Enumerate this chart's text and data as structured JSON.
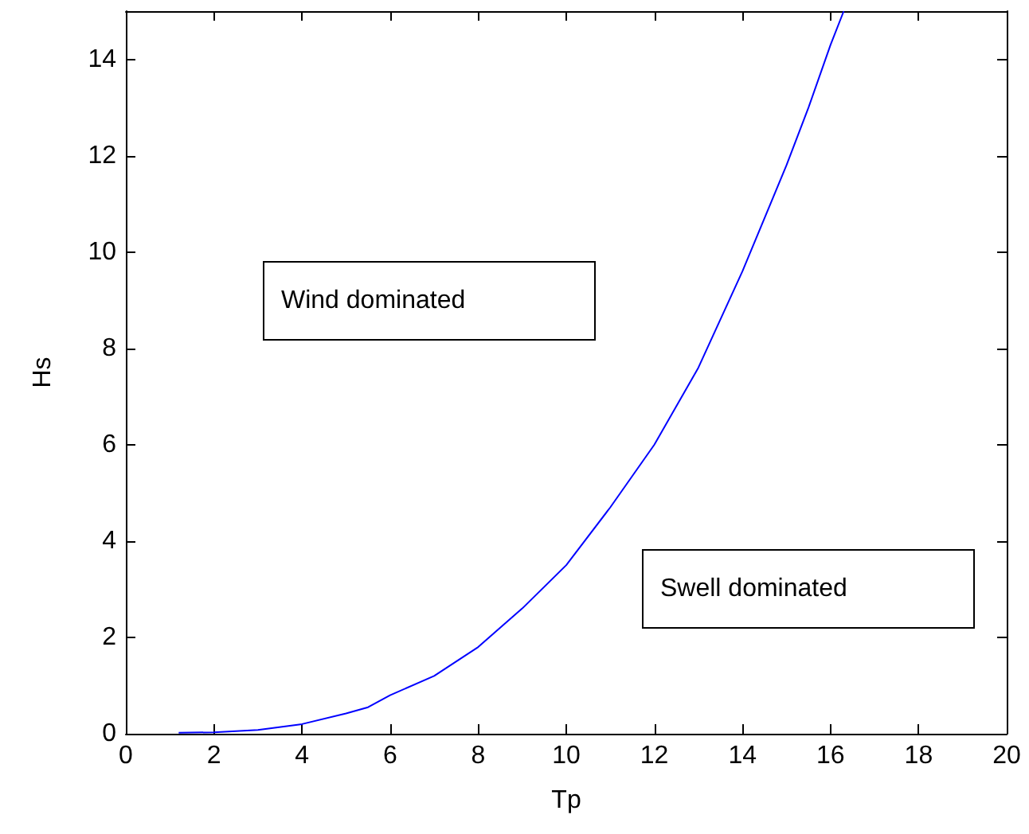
{
  "chart_data": {
    "type": "line",
    "xlabel": "Tp",
    "ylabel": "Hs",
    "x": [
      1.2,
      2,
      3,
      4,
      5,
      5.5,
      6,
      7,
      8,
      9,
      10,
      11,
      12,
      13,
      14,
      15,
      15.5,
      16,
      16.3
    ],
    "series": [
      {
        "color": "#0000ff",
        "values": [
          0.02,
          0.03,
          0.08,
          0.2,
          0.42,
          0.55,
          0.8,
          1.2,
          1.8,
          2.6,
          3.5,
          4.7,
          6,
          7.6,
          9.6,
          11.8,
          13.0,
          14.3,
          15
        ]
      }
    ],
    "xlim": [
      0,
      20
    ],
    "xticks": [
      0,
      2,
      4,
      6,
      8,
      10,
      12,
      14,
      16,
      18,
      20
    ],
    "ylim": [
      0,
      15
    ],
    "yticks": [
      0,
      2,
      4,
      6,
      8,
      10,
      12,
      14
    ],
    "annotations": [
      "Wind dominated",
      "Swell dominated"
    ],
    "grid": false,
    "marker": "none",
    "line_style": "solid"
  }
}
